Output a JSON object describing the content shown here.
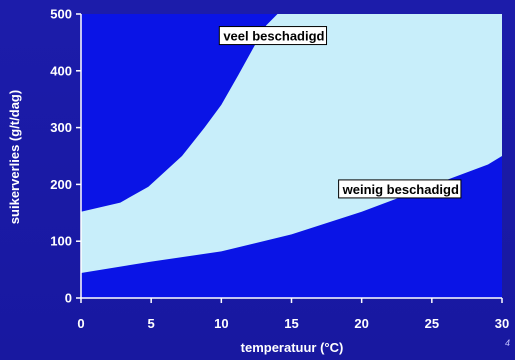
{
  "colors": {
    "background": "#1a1aa6",
    "plot_dark": "#0a14e6",
    "plot_light": "#c8eefa",
    "text": "#ffffff",
    "label_box": "#ffffff"
  },
  "chart_data": {
    "type": "area",
    "xlabel": "temperatuur (°C)",
    "ylabel": "suikerverlies (g/t/dag)",
    "xlim": [
      0,
      30
    ],
    "ylim": [
      0,
      500
    ],
    "x_ticks": [
      "0",
      "5",
      "10",
      "15",
      "20",
      "25",
      "30"
    ],
    "y_ticks": [
      "0",
      "100",
      "200",
      "300",
      "400",
      "500"
    ],
    "grid": false,
    "boundaries": [
      {
        "name": "upper boundary",
        "x": [
          0,
          2.8,
          4.8,
          7.2,
          8.8,
          10,
          11.2,
          12.5,
          13.2,
          14,
          30
        ],
        "y": [
          152,
          168,
          196,
          250,
          300,
          340,
          392,
          450,
          480,
          500,
          500
        ]
      },
      {
        "name": "lower boundary",
        "x": [
          0,
          5,
          10,
          15,
          20,
          25,
          29,
          30
        ],
        "y": [
          44,
          64,
          82,
          112,
          152,
          198,
          235,
          250
        ]
      }
    ],
    "regions": [
      {
        "label": "veel beschadigd",
        "x": 10,
        "y": 455
      },
      {
        "label": "weinig beschadigd",
        "x": 18.5,
        "y": 185
      }
    ],
    "page_number": "4"
  }
}
